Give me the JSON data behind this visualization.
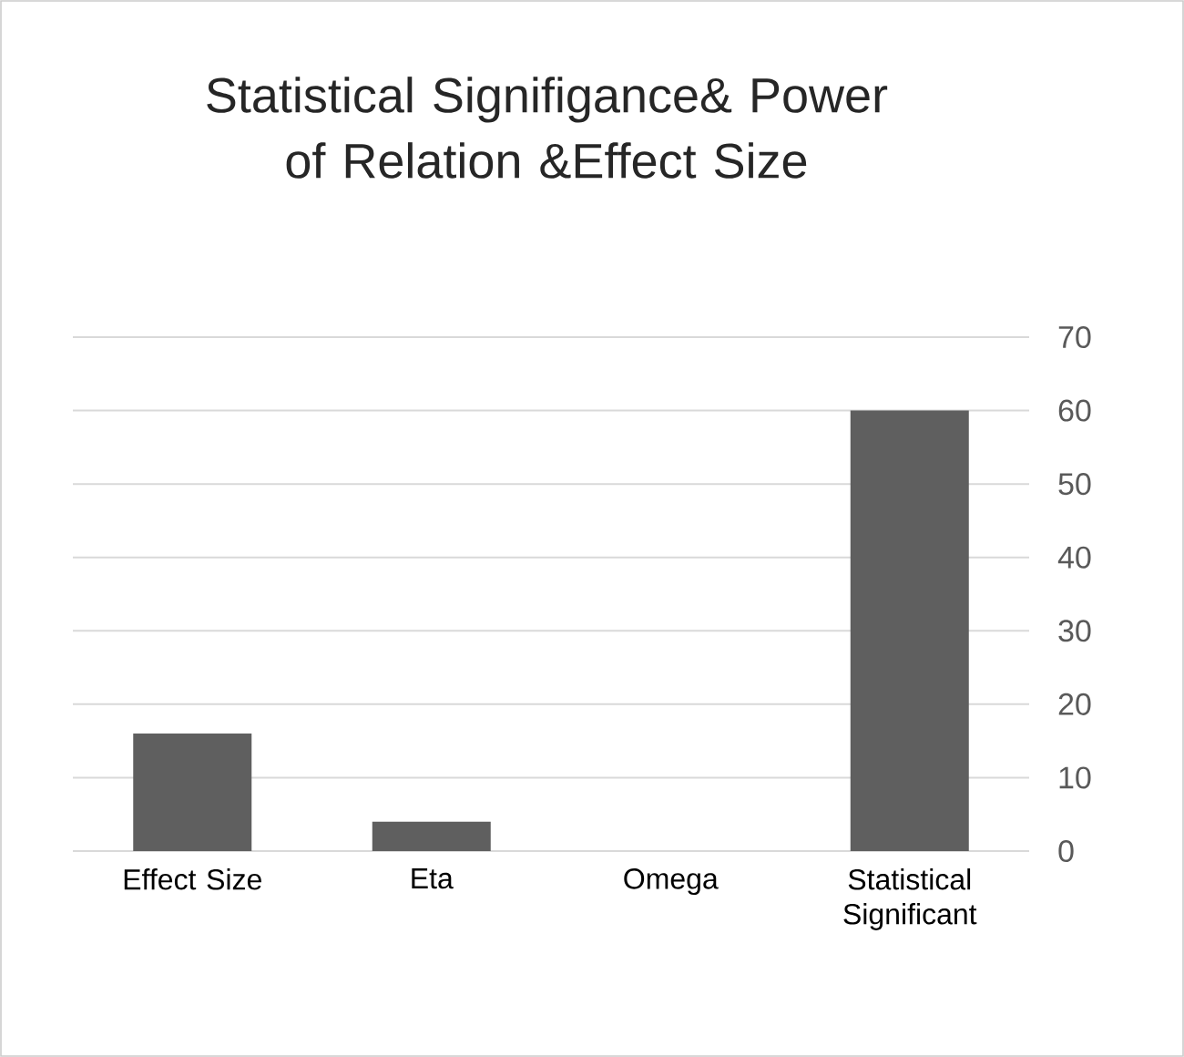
{
  "chart_data": {
    "type": "bar",
    "title": "Statistical  Signifigance& Power of Relation &Effect Size",
    "categories": [
      "Effect Size",
      "Eta",
      "Omega",
      "Statistical Significant"
    ],
    "values": [
      16,
      4,
      0,
      60
    ],
    "color": "#5f5f5f",
    "ylim": [
      0,
      70
    ],
    "yticks": [
      0,
      10,
      20,
      30,
      40,
      50,
      60,
      70
    ],
    "grid": "y"
  }
}
